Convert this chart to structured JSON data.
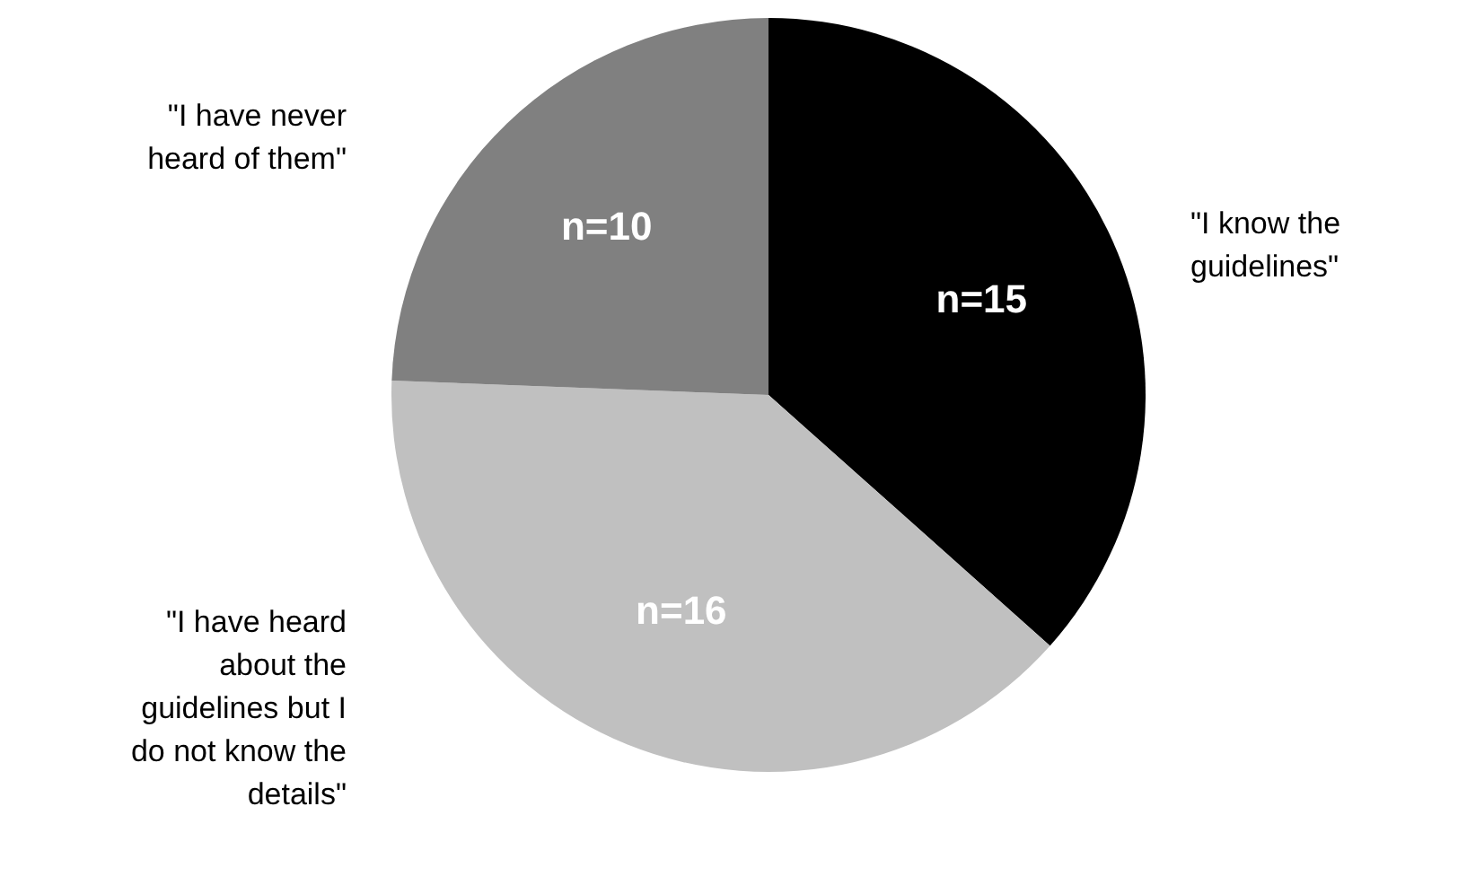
{
  "chart_data": {
    "type": "pie",
    "categories": [
      "\"I know the guidelines\"",
      "\"I have heard about the guidelines but I do not know the details\"",
      "\"I have never heard of them\""
    ],
    "values": [
      15,
      16,
      10
    ],
    "colors": [
      "#000000",
      "#c0c0c0",
      "#808080"
    ],
    "value_labels": [
      "n=15",
      "n=16",
      "n=10"
    ]
  }
}
